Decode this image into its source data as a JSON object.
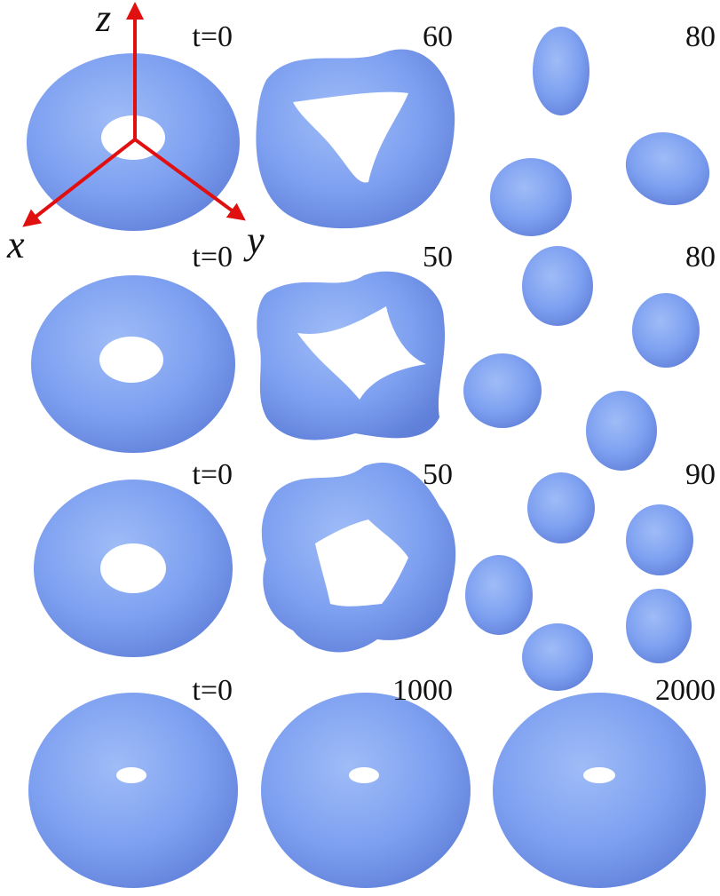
{
  "axes": {
    "z": "z",
    "x": "x",
    "y": "y"
  },
  "rows": [
    {
      "labels": [
        "t=0",
        "60",
        "80"
      ]
    },
    {
      "labels": [
        "t=0",
        "50",
        "80"
      ]
    },
    {
      "labels": [
        "t=0",
        "50",
        "90"
      ]
    },
    {
      "labels": [
        "t=0",
        "1000",
        "2000"
      ]
    }
  ]
}
